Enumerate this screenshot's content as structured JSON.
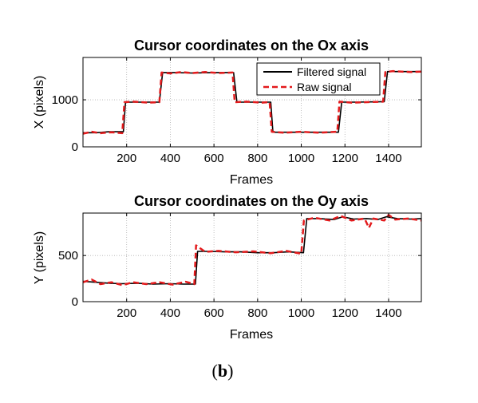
{
  "chart_data": [
    {
      "type": "line",
      "title": "Cursor coordinates on the Ox axis",
      "xlabel": "Frames",
      "ylabel": "X (pixels)",
      "xlim": [
        0,
        1550
      ],
      "ylim": [
        0,
        1900
      ],
      "xticks": [
        200,
        400,
        600,
        800,
        1000,
        1200,
        1400
      ],
      "yticks": [
        0,
        1000
      ],
      "grid": true,
      "legend": {
        "position": "top-right"
      },
      "series": [
        {
          "name": "Filtered signal",
          "color": "#000000",
          "style": "solid",
          "x": [
            0,
            60,
            120,
            185,
            195,
            250,
            350,
            365,
            420,
            500,
            600,
            690,
            705,
            780,
            860,
            870,
            950,
            1050,
            1170,
            1185,
            1250,
            1380,
            1395,
            1450,
            1550
          ],
          "y": [
            300,
            300,
            320,
            320,
            950,
            950,
            950,
            1580,
            1580,
            1570,
            1580,
            1580,
            950,
            950,
            950,
            310,
            310,
            310,
            310,
            950,
            950,
            960,
            1600,
            1600,
            1600
          ]
        },
        {
          "name": "Raw signal",
          "color": "#e31a1c",
          "style": "dashed",
          "x": [
            0,
            40,
            80,
            130,
            180,
            190,
            230,
            300,
            350,
            360,
            400,
            450,
            500,
            560,
            620,
            685,
            695,
            750,
            820,
            855,
            865,
            920,
            1000,
            1080,
            1165,
            1175,
            1230,
            1300,
            1375,
            1385,
            1420,
            1500,
            1550
          ],
          "y": [
            280,
            320,
            290,
            310,
            290,
            950,
            960,
            940,
            950,
            1580,
            1560,
            1590,
            1570,
            1590,
            1570,
            1580,
            950,
            960,
            940,
            950,
            320,
            300,
            320,
            300,
            320,
            960,
            940,
            950,
            960,
            1590,
            1610,
            1590,
            1600
          ]
        }
      ]
    },
    {
      "type": "line",
      "title": "Cursor coordinates on the Oy axis",
      "xlabel": "Frames",
      "ylabel": "Y (pixels)",
      "xlim": [
        0,
        1550
      ],
      "ylim": [
        0,
        960
      ],
      "xticks": [
        200,
        400,
        600,
        800,
        1000,
        1200,
        1400
      ],
      "yticks": [
        0,
        500
      ],
      "grid": true,
      "series": [
        {
          "name": "Filtered signal",
          "color": "#000000",
          "style": "solid",
          "x": [
            0,
            60,
            120,
            180,
            250,
            320,
            400,
            460,
            515,
            525,
            580,
            650,
            720,
            800,
            870,
            940,
            1010,
            1025,
            1080,
            1150,
            1190,
            1240,
            1300,
            1350,
            1390,
            1440,
            1500,
            1550
          ],
          "y": [
            220,
            210,
            200,
            195,
            200,
            190,
            195,
            190,
            190,
            545,
            545,
            540,
            540,
            530,
            530,
            540,
            530,
            900,
            900,
            890,
            920,
            895,
            900,
            890,
            920,
            900,
            895,
            900
          ]
        },
        {
          "name": "Raw signal",
          "color": "#e31a1c",
          "style": "dashed",
          "x": [
            0,
            40,
            80,
            130,
            180,
            230,
            290,
            350,
            410,
            470,
            510,
            518,
            560,
            620,
            700,
            780,
            860,
            930,
            1000,
            1012,
            1060,
            1130,
            1180,
            1230,
            1290,
            1310,
            1330,
            1380,
            1400,
            1430,
            1490,
            1550
          ],
          "y": [
            210,
            240,
            190,
            210,
            180,
            210,
            190,
            210,
            185,
            215,
            190,
            610,
            540,
            550,
            535,
            545,
            525,
            550,
            520,
            880,
            910,
            880,
            930,
            880,
            900,
            800,
            900,
            880,
            940,
            890,
            900,
            880
          ]
        }
      ]
    }
  ],
  "caption": {
    "open": "(",
    "label": "b",
    "close": ")"
  }
}
